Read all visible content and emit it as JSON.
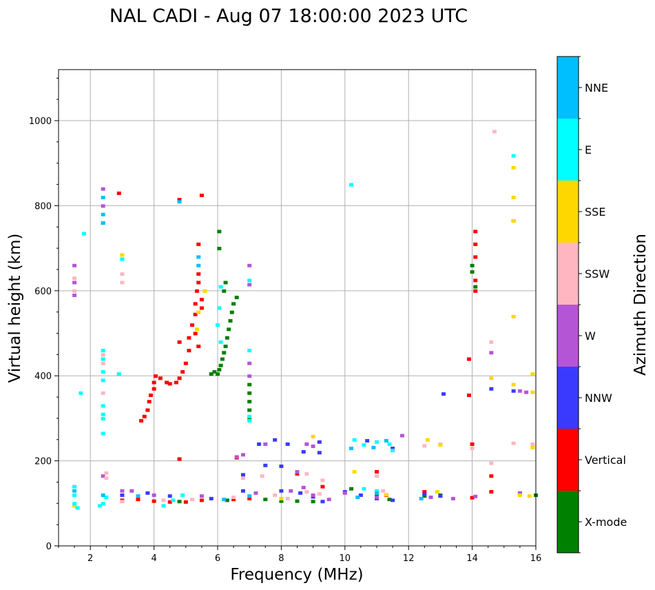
{
  "chart_data": {
    "type": "scatter",
    "title": "NAL CADI - Aug 07 18:00:00 2023 UTC",
    "xlabel": "Frequency (MHz)",
    "ylabel": "Virtual height (km)",
    "xlim": [
      1,
      16
    ],
    "ylim": [
      0,
      1120
    ],
    "xticks": [
      2,
      4,
      6,
      8,
      10,
      12,
      14,
      16
    ],
    "yticks": [
      0,
      200,
      400,
      600,
      800,
      1000
    ],
    "grid": true,
    "colorbar": {
      "label": "Azimuth Direction",
      "categories": [
        "X-mode",
        "Vertical",
        "NNW",
        "W",
        "SSW",
        "SSE",
        "E",
        "NNE"
      ],
      "colors": [
        "#008000",
        "#ff0000",
        "#3a3aff",
        "#b455d6",
        "#ffb6c1",
        "#ffd700",
        "#00ffff",
        "#00bfff"
      ]
    },
    "series": [
      {
        "name": "X-mode",
        "points": [
          [
            6.0,
            405
          ],
          [
            6.05,
            415
          ],
          [
            6.1,
            425
          ],
          [
            6.15,
            440
          ],
          [
            6.2,
            455
          ],
          [
            6.25,
            470
          ],
          [
            6.3,
            490
          ],
          [
            6.35,
            510
          ],
          [
            6.4,
            530
          ],
          [
            6.45,
            550
          ],
          [
            6.5,
            570
          ],
          [
            6.6,
            585
          ],
          [
            5.9,
            410
          ],
          [
            5.8,
            405
          ],
          [
            6.2,
            600
          ],
          [
            6.25,
            620
          ],
          [
            6.05,
            700
          ],
          [
            6.05,
            740
          ],
          [
            7.0,
            300
          ],
          [
            7.0,
            320
          ],
          [
            7.0,
            340
          ],
          [
            7.0,
            360
          ],
          [
            7.0,
            380
          ],
          [
            14.0,
            645
          ],
          [
            14.0,
            660
          ],
          [
            14.1,
            610
          ],
          [
            15.3,
            765
          ],
          [
            10.2,
            135
          ],
          [
            11.0,
            120
          ],
          [
            11.4,
            110
          ],
          [
            12.5,
            118
          ],
          [
            6.3,
            108
          ],
          [
            8.5,
            106
          ],
          [
            9.0,
            105
          ],
          [
            8.0,
            106
          ],
          [
            7.5,
            110
          ],
          [
            13.0,
            120
          ],
          [
            16.0,
            120
          ],
          [
            4.8,
            105
          ]
        ]
      },
      {
        "name": "Vertical",
        "points": [
          [
            3.6,
            295
          ],
          [
            3.7,
            305
          ],
          [
            3.8,
            320
          ],
          [
            3.85,
            340
          ],
          [
            3.9,
            355
          ],
          [
            4.0,
            370
          ],
          [
            4.0,
            385
          ],
          [
            4.05,
            400
          ],
          [
            4.2,
            395
          ],
          [
            4.4,
            385
          ],
          [
            4.5,
            382
          ],
          [
            4.7,
            385
          ],
          [
            4.8,
            395
          ],
          [
            4.9,
            410
          ],
          [
            5.0,
            430
          ],
          [
            5.1,
            460
          ],
          [
            5.1,
            490
          ],
          [
            5.2,
            520
          ],
          [
            5.3,
            545
          ],
          [
            5.3,
            570
          ],
          [
            5.35,
            600
          ],
          [
            5.4,
            620
          ],
          [
            5.4,
            640
          ],
          [
            5.5,
            580
          ],
          [
            5.5,
            560
          ],
          [
            5.3,
            500
          ],
          [
            5.4,
            470
          ],
          [
            4.8,
            480
          ],
          [
            5.4,
            710
          ],
          [
            4.8,
            815
          ],
          [
            5.5,
            825
          ],
          [
            14.1,
            600
          ],
          [
            14.1,
            625
          ],
          [
            14.1,
            680
          ],
          [
            14.1,
            710
          ],
          [
            14.1,
            740
          ],
          [
            13.9,
            440
          ],
          [
            13.9,
            355
          ],
          [
            14.0,
            240
          ],
          [
            14.6,
            165
          ],
          [
            4.0,
            106
          ],
          [
            4.5,
            104
          ],
          [
            5.0,
            104
          ],
          [
            5.5,
            108
          ],
          [
            6.5,
            110
          ],
          [
            7.0,
            112
          ],
          [
            8.5,
            170
          ],
          [
            9.3,
            140
          ],
          [
            11.3,
            120
          ],
          [
            12.5,
            128
          ],
          [
            14.0,
            114
          ],
          [
            14.6,
            128
          ],
          [
            15.5,
            125
          ],
          [
            2.9,
            830
          ],
          [
            4.8,
            205
          ],
          [
            3.0,
            108
          ],
          [
            3.5,
            110
          ],
          [
            6.6,
            208
          ],
          [
            11.0,
            175
          ]
        ]
      },
      {
        "name": "NNW",
        "points": [
          [
            7.3,
            240
          ],
          [
            7.8,
            250
          ],
          [
            8.2,
            240
          ],
          [
            9.2,
            245
          ],
          [
            8.7,
            222
          ],
          [
            9.2,
            220
          ],
          [
            10.7,
            248
          ],
          [
            11.5,
            230
          ],
          [
            13.1,
            358
          ],
          [
            14.6,
            370
          ],
          [
            15.3,
            365
          ],
          [
            3.0,
            120
          ],
          [
            3.8,
            125
          ],
          [
            4.5,
            118
          ],
          [
            5.8,
            112
          ],
          [
            6.8,
            130
          ],
          [
            8.0,
            130
          ],
          [
            8.6,
            125
          ],
          [
            9.0,
            116
          ],
          [
            10.5,
            120
          ],
          [
            11.0,
            112
          ],
          [
            11.5,
            108
          ],
          [
            12.5,
            122
          ],
          [
            13.0,
            118
          ],
          [
            7.5,
            190
          ],
          [
            8.0,
            188
          ],
          [
            6.8,
            168
          ],
          [
            9.3,
            105
          ],
          [
            10.0,
            128
          ]
        ]
      },
      {
        "name": "W",
        "points": [
          [
            1.5,
            590
          ],
          [
            1.5,
            620
          ],
          [
            1.5,
            660
          ],
          [
            2.4,
            760
          ],
          [
            2.4,
            800
          ],
          [
            2.4,
            840
          ],
          [
            7.0,
            400
          ],
          [
            7.0,
            430
          ],
          [
            7.0,
            615
          ],
          [
            7.0,
            660
          ],
          [
            6.6,
            210
          ],
          [
            6.8,
            215
          ],
          [
            7.5,
            240
          ],
          [
            8.8,
            240
          ],
          [
            9.0,
            235
          ],
          [
            11.8,
            260
          ],
          [
            14.6,
            455
          ],
          [
            15.5,
            365
          ],
          [
            15.7,
            362
          ],
          [
            3.0,
            130
          ],
          [
            4.0,
            120
          ],
          [
            5.5,
            118
          ],
          [
            7.2,
            125
          ],
          [
            8.3,
            130
          ],
          [
            8.7,
            138
          ],
          [
            9.0,
            120
          ],
          [
            9.5,
            110
          ],
          [
            10.0,
            125
          ],
          [
            11.0,
            115
          ],
          [
            12.7,
            115
          ],
          [
            13.4,
            112
          ],
          [
            14.1,
            117
          ],
          [
            15.5,
            125
          ],
          [
            2.4,
            165
          ],
          [
            8.5,
            175
          ],
          [
            3.3,
            130
          ]
        ]
      },
      {
        "name": "SSW",
        "points": [
          [
            1.5,
            600
          ],
          [
            1.5,
            630
          ],
          [
            2.4,
            360
          ],
          [
            2.4,
            430
          ],
          [
            2.4,
            450
          ],
          [
            3.0,
            620
          ],
          [
            3.0,
            640
          ],
          [
            2.5,
            160
          ],
          [
            2.5,
            172
          ],
          [
            14.6,
            480
          ],
          [
            14.7,
            975
          ],
          [
            14.6,
            195
          ],
          [
            15.9,
            240
          ],
          [
            6.8,
            160
          ],
          [
            7.4,
            165
          ],
          [
            8.8,
            170
          ],
          [
            9.3,
            155
          ],
          [
            11.0,
            165
          ],
          [
            12.5,
            236
          ],
          [
            13.0,
            240
          ],
          [
            3.0,
            105
          ],
          [
            4.3,
            108
          ],
          [
            5.2,
            110
          ],
          [
            6.5,
            115
          ],
          [
            7.8,
            120
          ],
          [
            8.2,
            112
          ],
          [
            8.8,
            128
          ],
          [
            9.2,
            123
          ],
          [
            11.2,
            130
          ],
          [
            14.0,
            230
          ],
          [
            15.3,
            242
          ]
        ]
      },
      {
        "name": "SSE",
        "points": [
          [
            3.0,
            685
          ],
          [
            5.6,
            600
          ],
          [
            5.4,
            550
          ],
          [
            5.35,
            510
          ],
          [
            15.3,
            540
          ],
          [
            15.3,
            820
          ],
          [
            15.3,
            890
          ],
          [
            15.3,
            765
          ],
          [
            15.3,
            380
          ],
          [
            15.9,
            405
          ],
          [
            15.9,
            362
          ],
          [
            15.9,
            232
          ],
          [
            14.6,
            395
          ],
          [
            15.5,
            120
          ],
          [
            15.8,
            118
          ],
          [
            9.0,
            258
          ],
          [
            12.6,
            250
          ],
          [
            13.0,
            238
          ],
          [
            10.3,
            175
          ],
          [
            8.0,
            112
          ],
          [
            11.3,
            121
          ],
          [
            12.9,
            128
          ],
          [
            1.5,
            95
          ]
        ]
      },
      {
        "name": "E",
        "points": [
          [
            2.4,
            300
          ],
          [
            2.4,
            310
          ],
          [
            2.4,
            330
          ],
          [
            2.4,
            390
          ],
          [
            2.4,
            410
          ],
          [
            2.4,
            440
          ],
          [
            2.4,
            460
          ],
          [
            2.4,
            265
          ],
          [
            6.1,
            610
          ],
          [
            6.05,
            560
          ],
          [
            6.0,
            520
          ],
          [
            6.1,
            480
          ],
          [
            7.0,
            295
          ],
          [
            7.0,
            305
          ],
          [
            7.0,
            460
          ],
          [
            7.0,
            625
          ],
          [
            1.5,
            140
          ],
          [
            1.5,
            120
          ],
          [
            1.5,
            100
          ],
          [
            1.8,
            735
          ],
          [
            1.7,
            360
          ],
          [
            2.9,
            405
          ],
          [
            3.0,
            675
          ],
          [
            10.2,
            850
          ],
          [
            10.3,
            250
          ],
          [
            10.6,
            238
          ],
          [
            11.0,
            245
          ],
          [
            11.4,
            240
          ],
          [
            11.5,
            225
          ],
          [
            15.3,
            918
          ],
          [
            10.6,
            135
          ],
          [
            11.0,
            130
          ],
          [
            2.5,
            115
          ],
          [
            4.3,
            95
          ],
          [
            4.6,
            108
          ],
          [
            4.9,
            120
          ],
          [
            2.4,
            100
          ],
          [
            2.3,
            95
          ],
          [
            1.6,
            90
          ]
        ]
      },
      {
        "name": "NNE",
        "points": [
          [
            2.4,
            780
          ],
          [
            2.4,
            820
          ],
          [
            2.4,
            760
          ],
          [
            5.4,
            660
          ],
          [
            5.4,
            680
          ],
          [
            4.8,
            810
          ],
          [
            10.2,
            230
          ],
          [
            10.9,
            232
          ],
          [
            11.3,
            248
          ],
          [
            1.5,
            130
          ],
          [
            2.4,
            120
          ],
          [
            3.5,
            118
          ],
          [
            6.2,
            110
          ],
          [
            7.0,
            118
          ],
          [
            10.4,
            115
          ],
          [
            12.4,
            112
          ],
          [
            11.0,
            125
          ]
        ]
      }
    ]
  }
}
